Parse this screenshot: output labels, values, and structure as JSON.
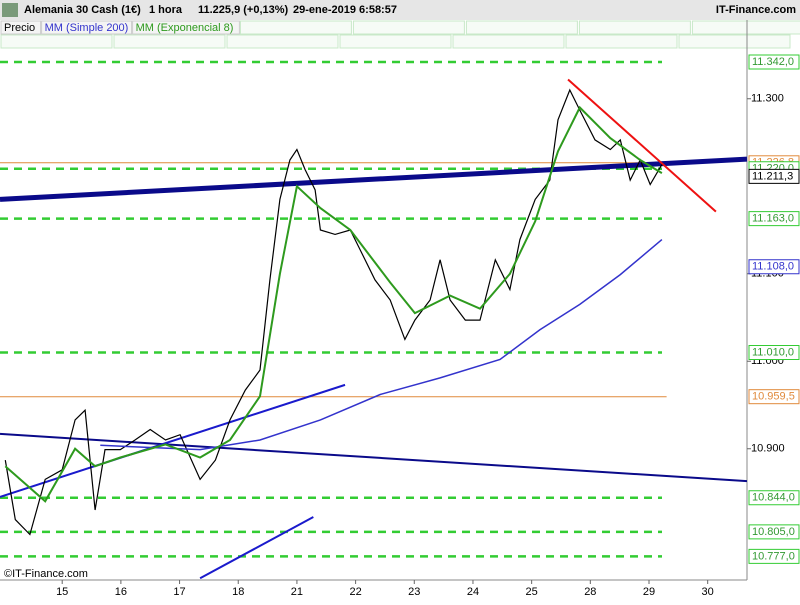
{
  "chart_data": {
    "type": "line",
    "title": "Alemania 30 Cash (1€)",
    "interval": "1 hora",
    "last_price": "11.225,9 (+0,13%)",
    "datetime": "29-ene-2019 6:58:57",
    "brand": "IT-Finance.com",
    "watermark": "©IT-Finance.com",
    "xlim": [
      -1.06,
      11.67
    ],
    "ylim": [
      10.75,
      11.39
    ],
    "xticks": [
      {
        "value": 0,
        "label": "15"
      },
      {
        "value": 1,
        "label": "16"
      },
      {
        "value": 2,
        "label": "17"
      },
      {
        "value": 3,
        "label": "18"
      },
      {
        "value": 4,
        "label": "21"
      },
      {
        "value": 5,
        "label": "22"
      },
      {
        "value": 6,
        "label": "23"
      },
      {
        "value": 7,
        "label": "24"
      },
      {
        "value": 8,
        "label": "25"
      },
      {
        "value": 9,
        "label": "28"
      },
      {
        "value": 10,
        "label": "29"
      },
      {
        "value": 11,
        "label": "30"
      }
    ],
    "yticks": [
      {
        "value": 11.3,
        "label": "11.300"
      },
      {
        "value": 11.1,
        "label": "11.100"
      },
      {
        "value": 11.0,
        "label": "11.000"
      },
      {
        "value": 10.9,
        "label": "10.900"
      }
    ],
    "series": [
      {
        "name": "Precio",
        "color": "#000000",
        "width": 1.2,
        "x": [
          -0.97,
          -0.8,
          -0.55,
          -0.29,
          0,
          0.22,
          0.39,
          0.56,
          0.73,
          0.99,
          1.24,
          1.5,
          1.76,
          2.01,
          2.35,
          2.61,
          2.86,
          3.12,
          3.37,
          3.54,
          3.71,
          3.88,
          4.0,
          4.14,
          4.31,
          4.4,
          4.65,
          4.91,
          5.08,
          5.33,
          5.59,
          5.84,
          6.01,
          6.27,
          6.44,
          6.61,
          6.87,
          7.12,
          7.38,
          7.63,
          7.8,
          8.06,
          8.31,
          8.45,
          8.65,
          8.82,
          9.08,
          9.34,
          9.51,
          9.68,
          9.85,
          10.02,
          10.22
        ],
        "values": [
          10.887,
          10.819,
          10.802,
          10.865,
          10.876,
          10.933,
          10.944,
          10.83,
          10.899,
          10.899,
          10.91,
          10.922,
          10.91,
          10.916,
          10.865,
          10.887,
          10.933,
          10.967,
          10.99,
          11.093,
          11.185,
          11.23,
          11.242,
          11.219,
          11.196,
          11.15,
          11.145,
          11.15,
          11.127,
          11.093,
          11.07,
          11.025,
          11.047,
          11.07,
          11.116,
          11.07,
          11.047,
          11.047,
          11.116,
          11.082,
          11.139,
          11.185,
          11.207,
          11.276,
          11.31,
          11.287,
          11.253,
          11.242,
          11.253,
          11.207,
          11.23,
          11.202,
          11.225
        ]
      },
      {
        "name": "MM (Simple 200)",
        "color": "#3333cc",
        "width": 1.5,
        "x": [
          0.65,
          2.35,
          3.37,
          4.4,
          5.42,
          6.44,
          7.46,
          8.14,
          8.82,
          9.51,
          10.22
        ],
        "values": [
          10.904,
          10.899,
          10.91,
          10.933,
          10.962,
          10.981,
          11.002,
          11.036,
          11.065,
          11.099,
          11.139
        ]
      },
      {
        "name": "MM (Exponencial 8)",
        "color": "#2e9a1e",
        "width": 2,
        "x": [
          -0.97,
          -0.29,
          0.22,
          0.56,
          0.99,
          1.76,
          2.35,
          2.86,
          3.37,
          3.71,
          4.0,
          4.4,
          4.91,
          5.59,
          6.01,
          6.61,
          7.12,
          7.63,
          8.06,
          8.45,
          8.82,
          9.34,
          9.85,
          10.22
        ],
        "values": [
          10.88,
          10.84,
          10.9,
          10.88,
          10.89,
          10.905,
          10.89,
          10.91,
          10.96,
          11.1,
          11.2,
          11.175,
          11.15,
          11.09,
          11.055,
          11.075,
          11.06,
          11.1,
          11.16,
          11.24,
          11.29,
          11.255,
          11.23,
          11.215
        ]
      }
    ],
    "levels": [
      {
        "value": 11.342,
        "label": "11.342,0",
        "color": "#33cc33",
        "style": "dashed"
      },
      {
        "value": 11.2268,
        "label": "11.226,8",
        "color": "#e08a3c",
        "style": "solid"
      },
      {
        "value": 11.22,
        "label": "11.220,0",
        "color": "#33cc33",
        "style": "dashed"
      },
      {
        "value": 11.2113,
        "label": "11.211,3",
        "color": "#000000",
        "style": "none"
      },
      {
        "value": 11.163,
        "label": "11.163,0",
        "color": "#33cc33",
        "style": "dashed"
      },
      {
        "value": 11.108,
        "label": "11.108,0",
        "color": "#3333cc",
        "style": "none"
      },
      {
        "value": 11.01,
        "label": "11.010,0",
        "color": "#33cc33",
        "style": "dashed"
      },
      {
        "value": 10.9595,
        "label": "10.959,5",
        "color": "#e08a3c",
        "style": "solid"
      },
      {
        "value": 10.844,
        "label": "10.844,0",
        "color": "#33cc33",
        "style": "dashed"
      },
      {
        "value": 10.805,
        "label": "10.805,0",
        "color": "#33cc33",
        "style": "dashed"
      },
      {
        "value": 10.777,
        "label": "10.777,0",
        "color": "#33cc33",
        "style": "dashed"
      }
    ],
    "trendlines": [
      {
        "x1": -1.06,
        "y1": 11.185,
        "x2": 11.67,
        "y2": 11.231,
        "color": "#0a0a8a",
        "width": 5
      },
      {
        "x1": -1.06,
        "y1": 10.917,
        "x2": 11.67,
        "y2": 10.863,
        "color": "#0a0a8a",
        "width": 2
      },
      {
        "x1": -1.06,
        "y1": 10.845,
        "x2": 4.82,
        "y2": 10.973,
        "color": "#1a1acc",
        "width": 2
      },
      {
        "x1": 2.35,
        "y1": 10.752,
        "x2": 4.28,
        "y2": 10.822,
        "color": "#1a1acc",
        "width": 2
      },
      {
        "x1": 8.62,
        "y1": 11.322,
        "x2": 11.14,
        "y2": 11.171,
        "color": "#ee1111",
        "width": 2
      }
    ]
  }
}
